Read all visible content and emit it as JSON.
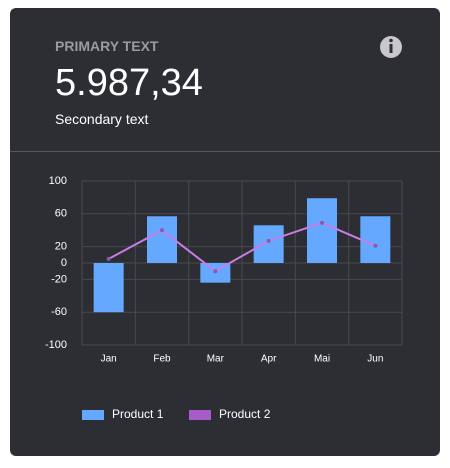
{
  "header": {
    "overline": "PRIMARY TEXT",
    "value": "5.987,34",
    "secondary": "Secondary text"
  },
  "chart_data": {
    "type": "bar-line",
    "categories": [
      "Jan",
      "Feb",
      "Mar",
      "Apr",
      "Mai",
      "Jun"
    ],
    "series": [
      {
        "name": "Product 1",
        "color": "#64a8ff",
        "type": "bar",
        "values": [
          -60,
          57,
          -24,
          46,
          79,
          57
        ]
      },
      {
        "name": "Product 2",
        "color": "#c77de8",
        "type": "line",
        "values": [
          5,
          40,
          -10,
          27,
          49,
          21
        ]
      }
    ],
    "ylim": [
      -100,
      100
    ],
    "yticks": [
      100,
      60,
      20,
      0,
      -20,
      -60,
      -100
    ],
    "grid": true,
    "legend": "bottom"
  }
}
